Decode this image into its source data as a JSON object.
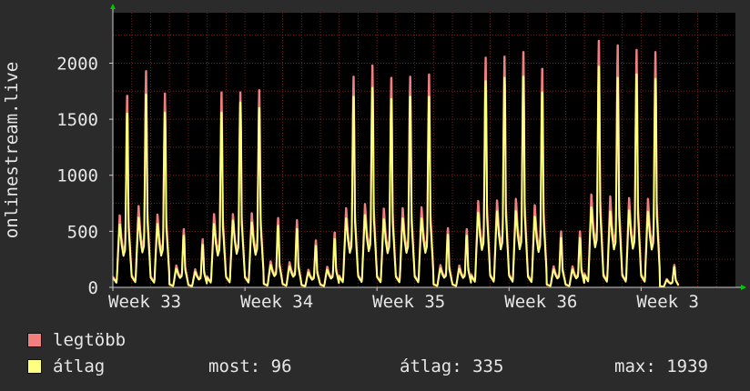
{
  "chart_data": {
    "type": "line",
    "ylabel": "onlinestream.live",
    "ylim": [
      0,
      2450
    ],
    "yticks": [
      0,
      500,
      1000,
      1500,
      2000
    ],
    "xlim": [
      0,
      33
    ],
    "xticks": [
      {
        "label": "Week 33",
        "x": 0
      },
      {
        "label": "Week 34",
        "x": 7
      },
      {
        "label": "Week 35",
        "x": 14
      },
      {
        "label": "Week 36",
        "x": 21
      },
      {
        "label": "Week 3",
        "x": 28
      }
    ],
    "grid": true,
    "series": [
      {
        "name": "legtöbb",
        "color": "#f08080",
        "daily_peaks": [
          1710,
          1930,
          1730,
          520,
          430,
          1740,
          1740,
          1760,
          620,
          600,
          420,
          490,
          1880,
          1980,
          1870,
          1880,
          1900,
          530,
          520,
          2050,
          2060,
          2100,
          1950,
          500,
          500,
          2200,
          2160,
          2120,
          2100,
          200
        ]
      },
      {
        "name": "átlag",
        "color": "#ffff80",
        "daily_peaks": [
          1550,
          1720,
          1560,
          460,
          380,
          1560,
          1650,
          1600,
          550,
          520,
          370,
          430,
          1700,
          1780,
          1680,
          1700,
          1700,
          470,
          460,
          1840,
          1870,
          1880,
          1740,
          440,
          440,
          1970,
          1870,
          1900,
          1860,
          180
        ]
      }
    ]
  },
  "legend": {
    "max_label": "legtöbb",
    "avg_label": "átlag",
    "max_color": "#f08080",
    "avg_color": "#ffff80"
  },
  "stats": {
    "now": "most: 96",
    "avg": "átlag: 335",
    "max": "max: 1939"
  },
  "colors": {
    "plot_bg": "#000000",
    "page_bg": "#2b2b2b",
    "grid": "#7a1e1e",
    "axis_arrow": "#00c800"
  }
}
